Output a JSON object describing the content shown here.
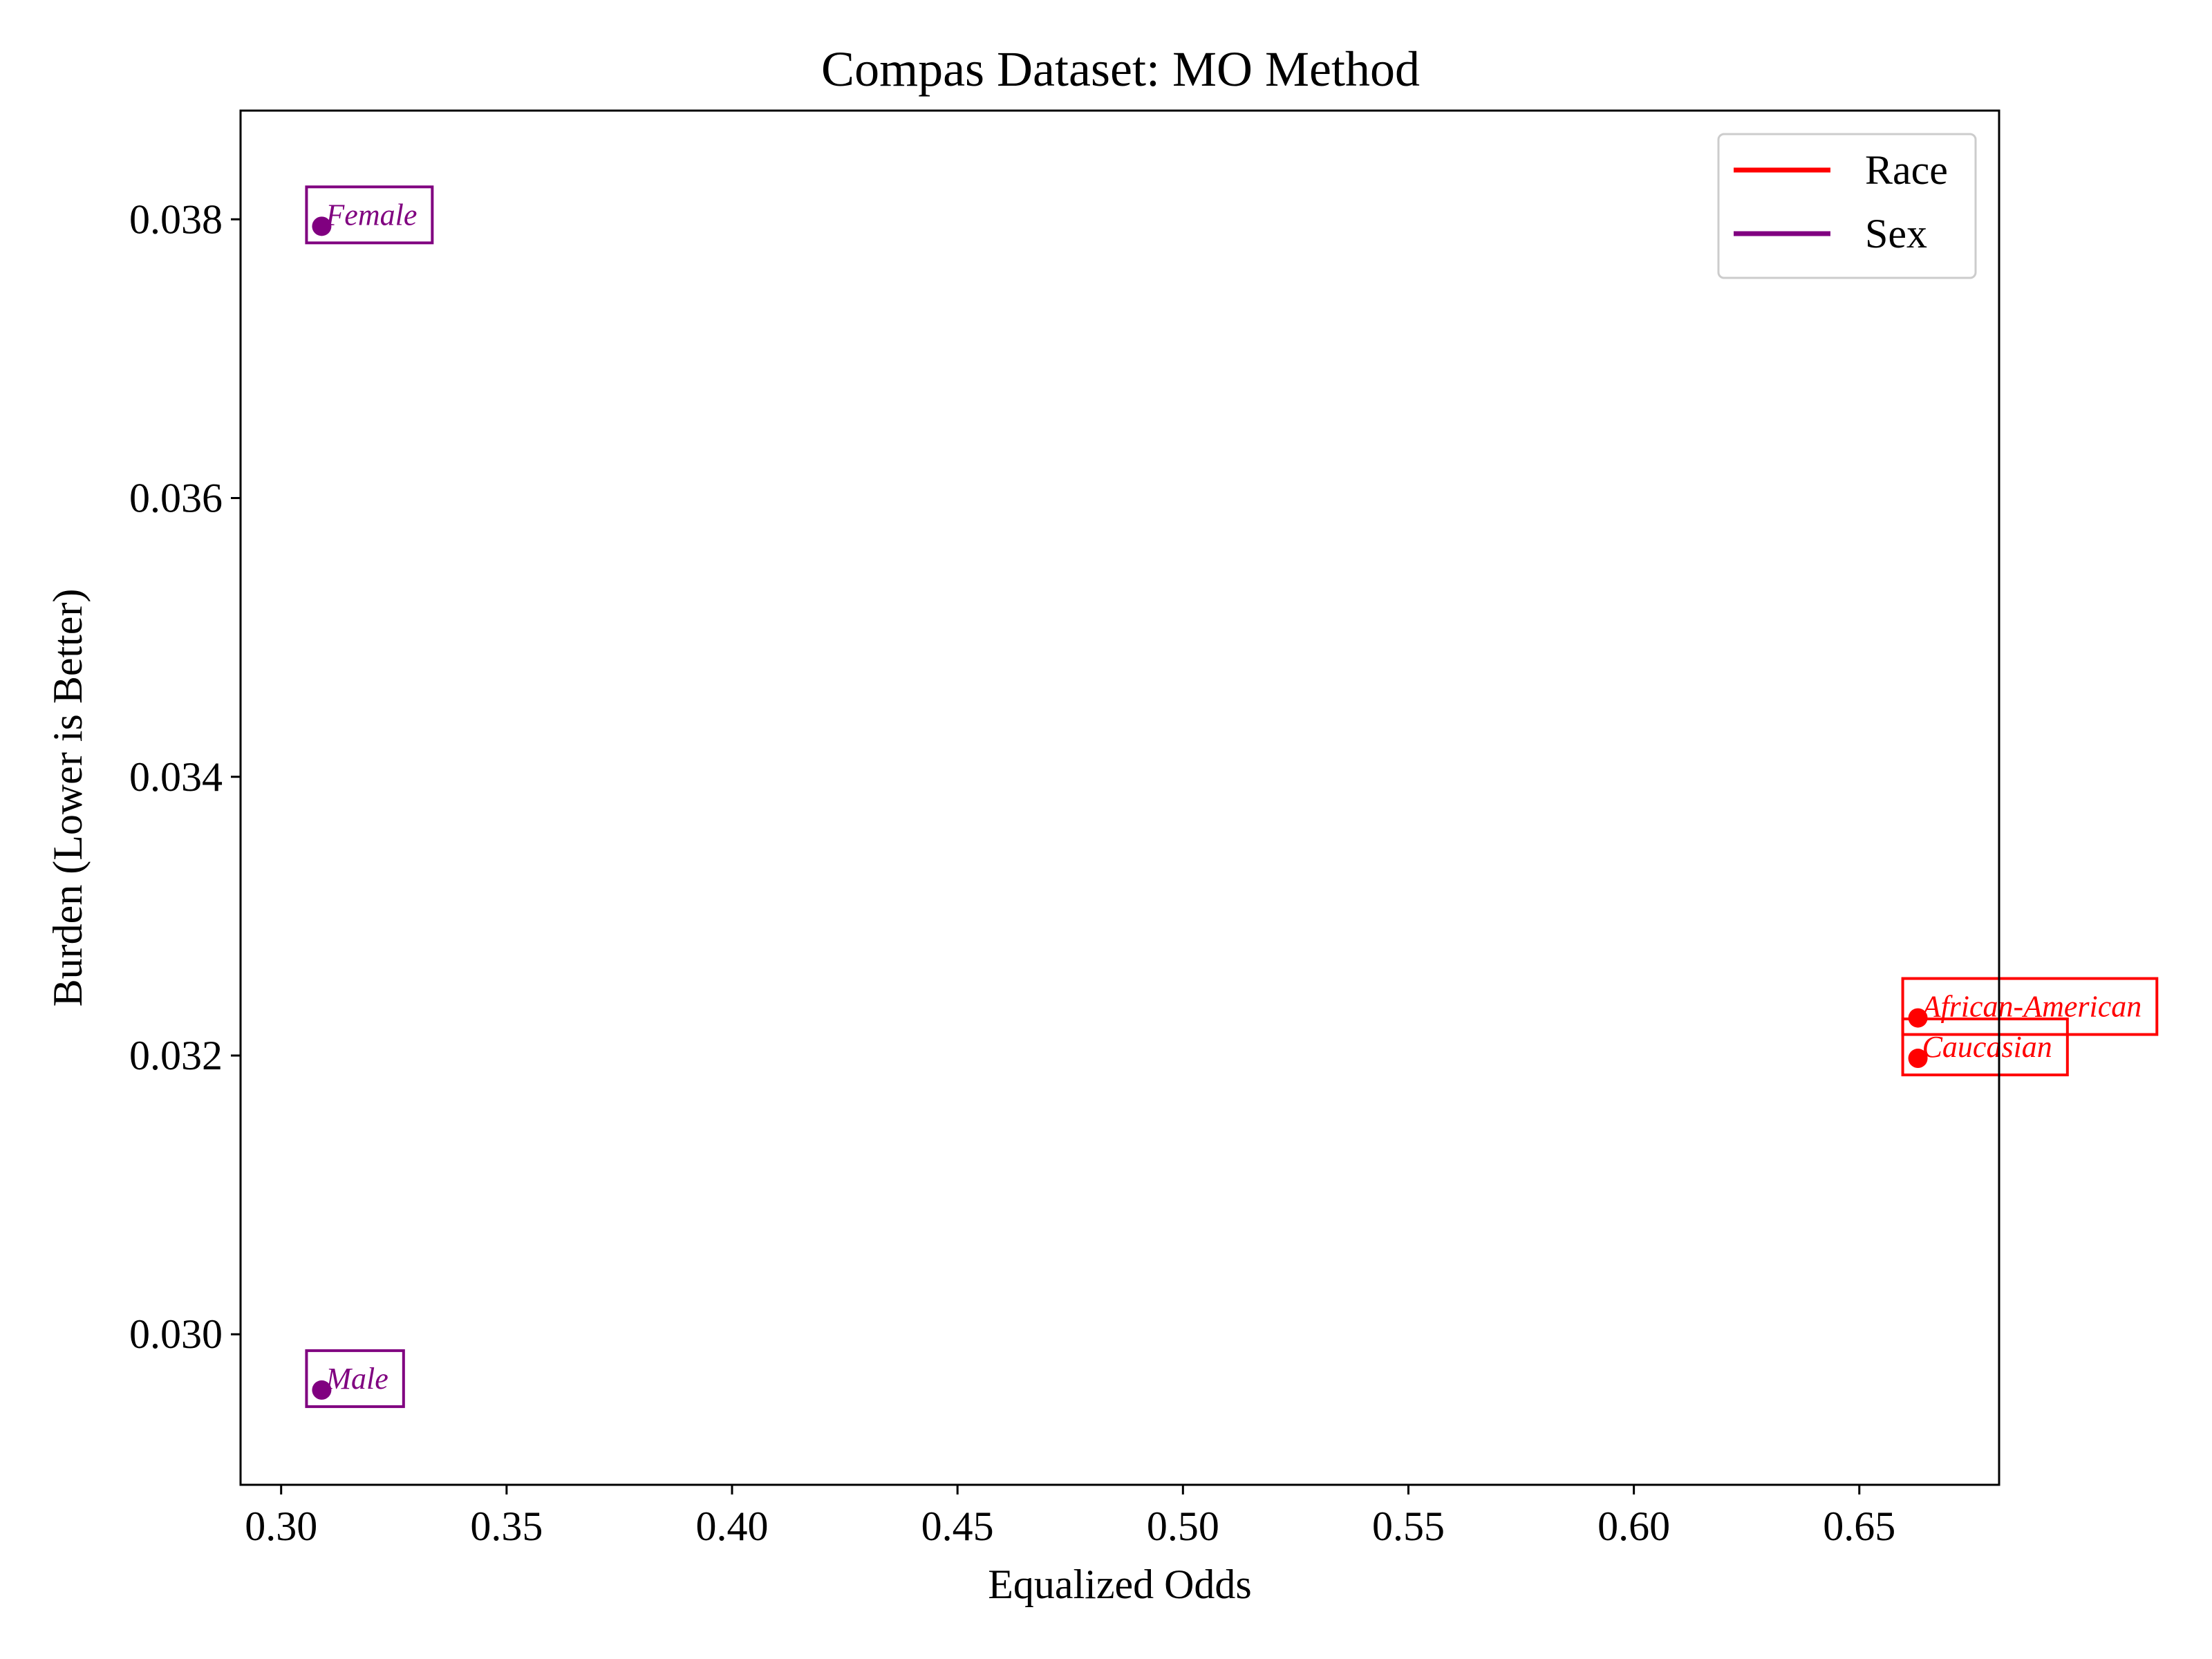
{
  "chart_data": {
    "type": "scatter",
    "title": "Compas Dataset: MO Method",
    "xlabel": "Equalized Odds",
    "ylabel": "Burden (Lower is Better)",
    "xlim": [
      0.291,
      0.681
    ],
    "ylim": [
      0.02892,
      0.03878
    ],
    "x_ticks": [
      0.3,
      0.35,
      0.4,
      0.45,
      0.5,
      0.55,
      0.6,
      0.65
    ],
    "x_tick_labels": [
      "0.30",
      "0.35",
      "0.40",
      "0.45",
      "0.50",
      "0.55",
      "0.60",
      "0.65"
    ],
    "y_ticks": [
      0.03,
      0.032,
      0.034,
      0.036,
      0.038
    ],
    "y_tick_labels": [
      "0.030",
      "0.032",
      "0.034",
      "0.036",
      "0.038"
    ],
    "grid": false,
    "legend_position": "top-right",
    "series": [
      {
        "name": "Race",
        "color": "#ff0000",
        "points": [
          {
            "label": "African-American",
            "x": 0.663,
            "y": 0.03227
          },
          {
            "label": "Caucasian",
            "x": 0.663,
            "y": 0.03198
          }
        ]
      },
      {
        "name": "Sex",
        "color": "#800080",
        "points": [
          {
            "label": "Female",
            "x": 0.309,
            "y": 0.03795
          },
          {
            "label": "Male",
            "x": 0.309,
            "y": 0.0296
          }
        ]
      }
    ]
  }
}
